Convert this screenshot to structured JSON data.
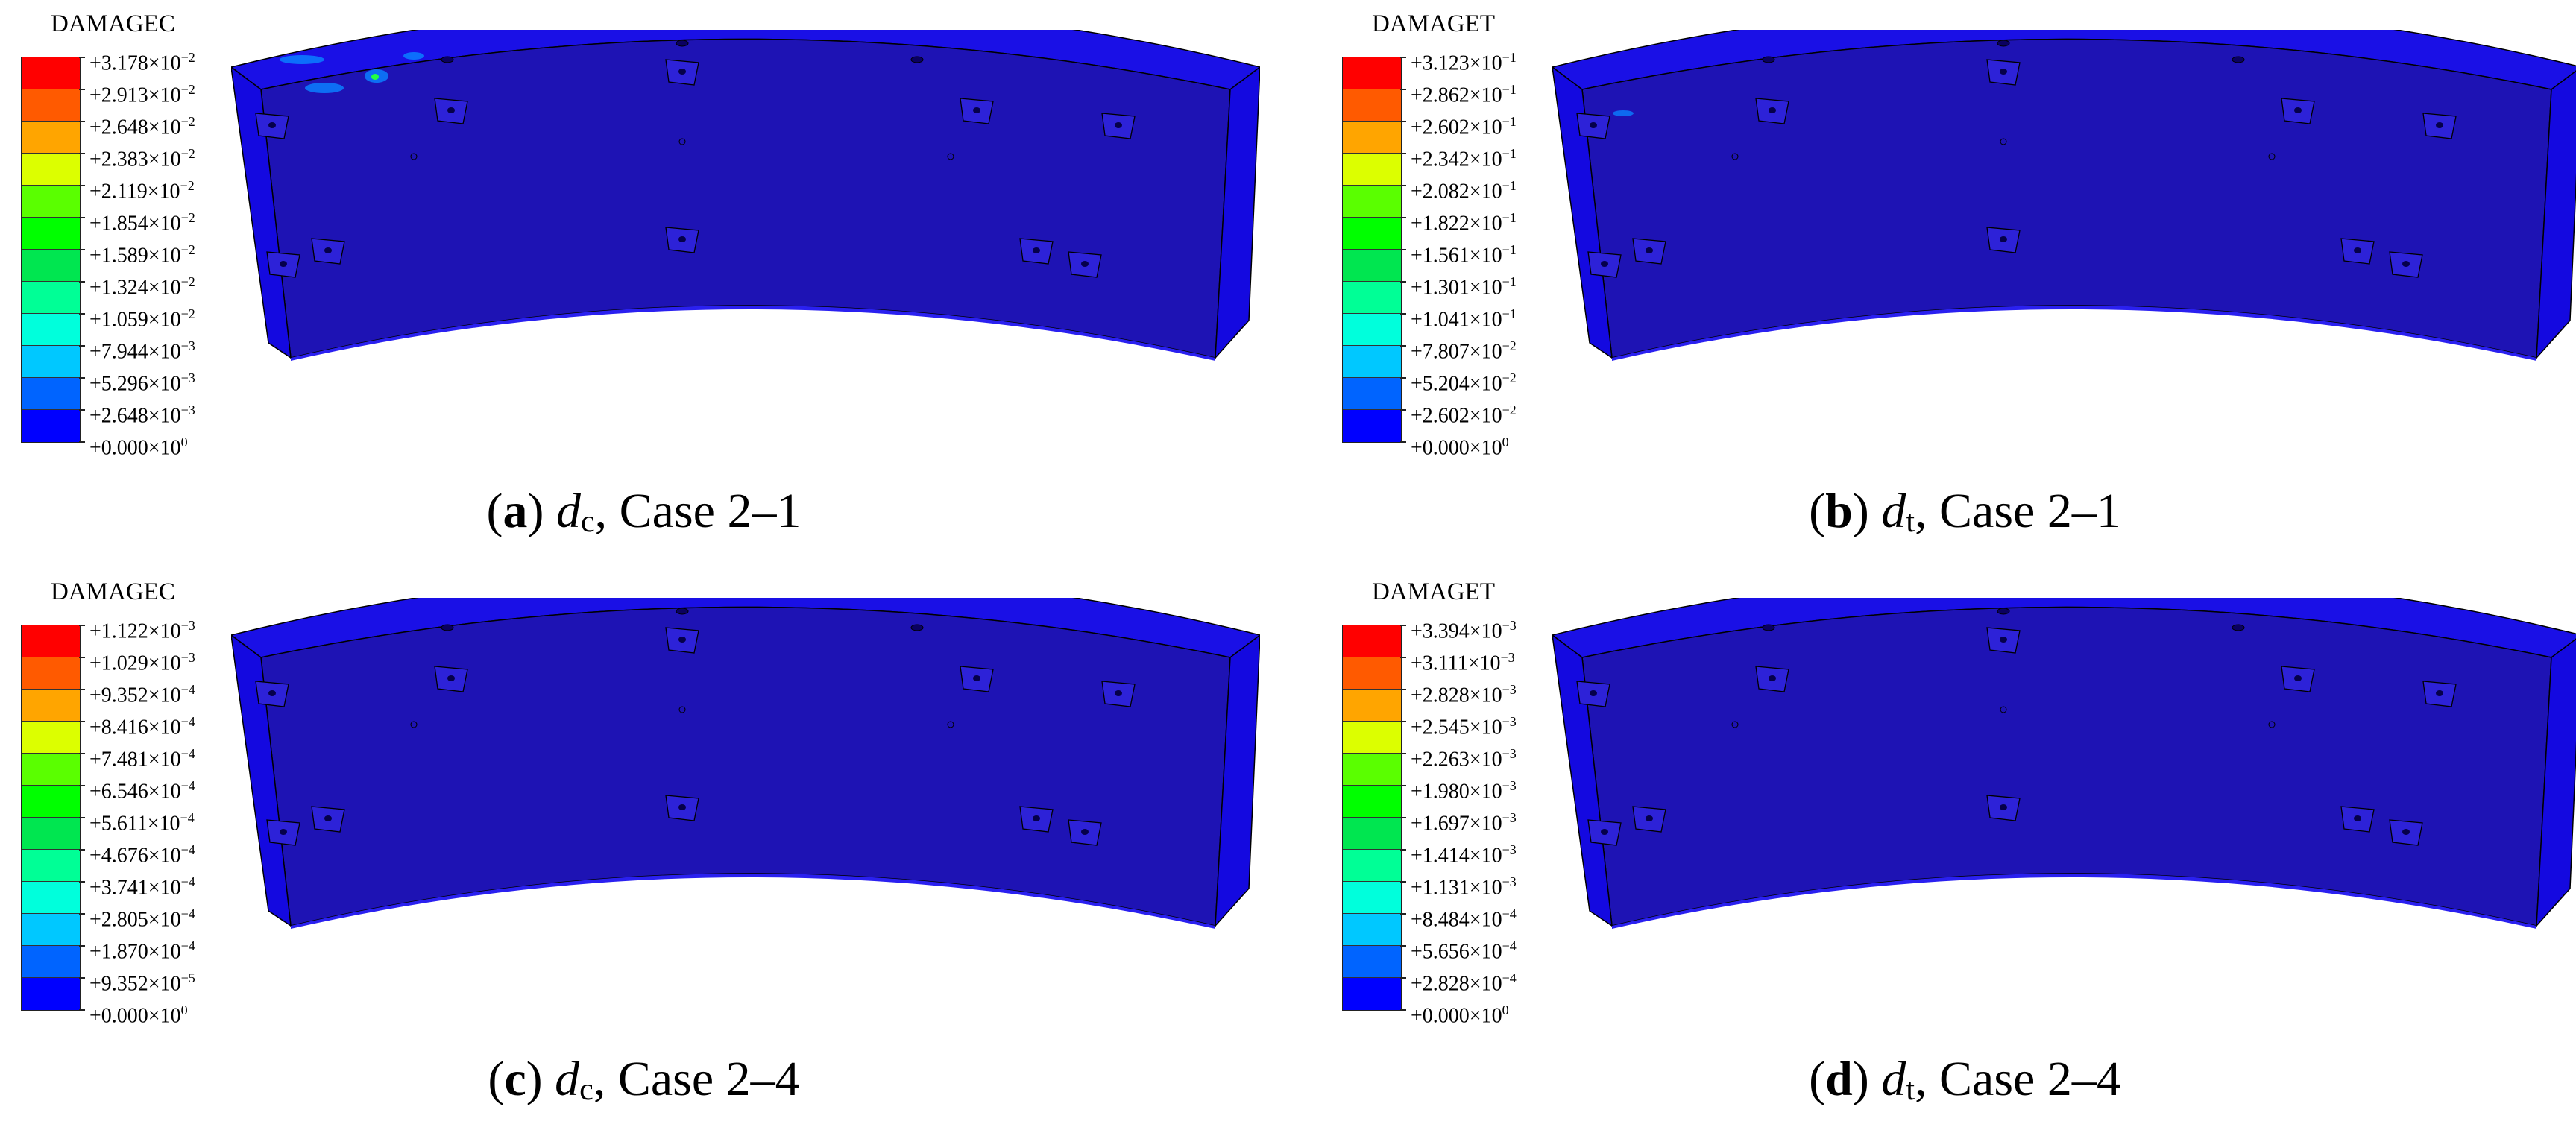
{
  "colors": [
    "#ff0000",
    "#ff5a00",
    "#ffa500",
    "#dcff00",
    "#5aff00",
    "#00ff00",
    "#00e650",
    "#00ff96",
    "#00ffdc",
    "#00c8ff",
    "#0064ff",
    "#0000ff"
  ],
  "panels": [
    {
      "legend_title": "DAMAGEC",
      "labels": [
        "+3.178×10",
        "+2.913×10",
        "+2.648×10",
        "+2.383×10",
        "+2.119×10",
        "+1.854×10",
        "+1.589×10",
        "+1.324×10",
        "+1.059×10",
        "+7.944×10",
        "+5.296×10",
        "+2.648×10",
        "+0.000×10"
      ],
      "exps": [
        "−2",
        "−2",
        "−2",
        "−2",
        "−2",
        "−2",
        "−2",
        "−2",
        "−2",
        "−3",
        "−3",
        "−3",
        "0"
      ],
      "caption": {
        "letter": "a",
        "var": "d",
        "sub": "c",
        "rest": ", Case 2–1"
      }
    },
    {
      "legend_title": "DAMAGET",
      "labels": [
        "+3.123×10",
        "+2.862×10",
        "+2.602×10",
        "+2.342×10",
        "+2.082×10",
        "+1.822×10",
        "+1.561×10",
        "+1.301×10",
        "+1.041×10",
        "+7.807×10",
        "+5.204×10",
        "+2.602×10",
        "+0.000×10"
      ],
      "exps": [
        "−1",
        "−1",
        "−1",
        "−1",
        "−1",
        "−1",
        "−1",
        "−1",
        "−1",
        "−2",
        "−2",
        "−2",
        "0"
      ],
      "caption": {
        "letter": "b",
        "var": "d",
        "sub": "t",
        "rest": ", Case 2–1"
      }
    },
    {
      "legend_title": "DAMAGEC",
      "labels": [
        "+1.122×10",
        "+1.029×10",
        "+9.352×10",
        "+8.416×10",
        "+7.481×10",
        "+6.546×10",
        "+5.611×10",
        "+4.676×10",
        "+3.741×10",
        "+2.805×10",
        "+1.870×10",
        "+9.352×10",
        "+0.000×10"
      ],
      "exps": [
        "−3",
        "−3",
        "−4",
        "−4",
        "−4",
        "−4",
        "−4",
        "−4",
        "−4",
        "−4",
        "−4",
        "−5",
        "0"
      ],
      "caption": {
        "letter": "c",
        "var": "d",
        "sub": "c",
        "rest": ", Case 2–4"
      }
    },
    {
      "legend_title": "DAMAGET",
      "labels": [
        "+3.394×10",
        "+3.111×10",
        "+2.828×10",
        "+2.545×10",
        "+2.263×10",
        "+1.980×10",
        "+1.697×10",
        "+1.414×10",
        "+1.131×10",
        "+8.484×10",
        "+5.656×10",
        "+2.828×10",
        "+0.000×10"
      ],
      "exps": [
        "−3",
        "−3",
        "−3",
        "−3",
        "−3",
        "−3",
        "−3",
        "−3",
        "−3",
        "−4",
        "−4",
        "−4",
        "0"
      ],
      "caption": {
        "letter": "d",
        "var": "d",
        "sub": "t",
        "rest": ", Case 2–4"
      }
    }
  ]
}
